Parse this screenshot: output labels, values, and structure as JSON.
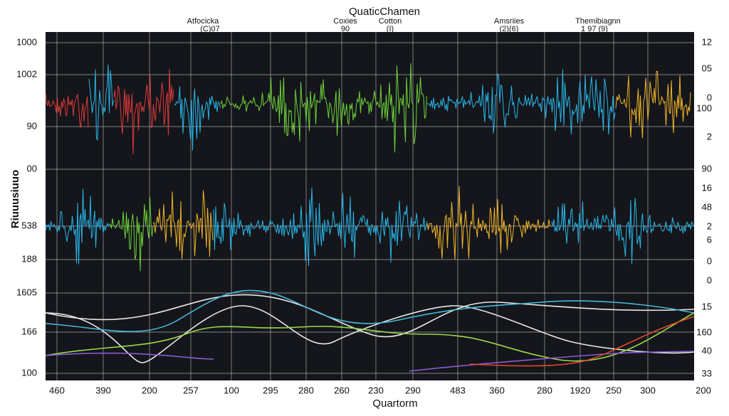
{
  "header": {
    "title": "QuaticChamen",
    "x_axis_title": "Quartorm",
    "y_axis_title": "Riuuusiuuo"
  },
  "legend": [
    {
      "label": "Atfocicka",
      "sub": "(C)07"
    },
    {
      "label": "Coxies",
      "sub": "90"
    },
    {
      "label": "Cotton",
      "sub": "(I)"
    },
    {
      "label": "Amsriies",
      "sub": "(2)(6)"
    },
    {
      "label": "Themibiagnn",
      "sub": "1 97 (9)"
    }
  ],
  "left_labels": [
    "1000",
    "1002",
    "90",
    "00",
    "538",
    "188",
    "1605",
    "166",
    "100"
  ],
  "right_labels": [
    "12",
    "05",
    "0",
    "100",
    "2",
    "90",
    "16",
    "48",
    "2",
    "6",
    "0",
    "0",
    "15",
    "160",
    "40",
    "33"
  ],
  "bottom_labels": [
    "460",
    "390",
    "200",
    "257",
    "100",
    "295",
    "280",
    "260",
    "230",
    "290",
    "483",
    "360",
    "280",
    "1920",
    "250",
    "300",
    "200"
  ]
}
